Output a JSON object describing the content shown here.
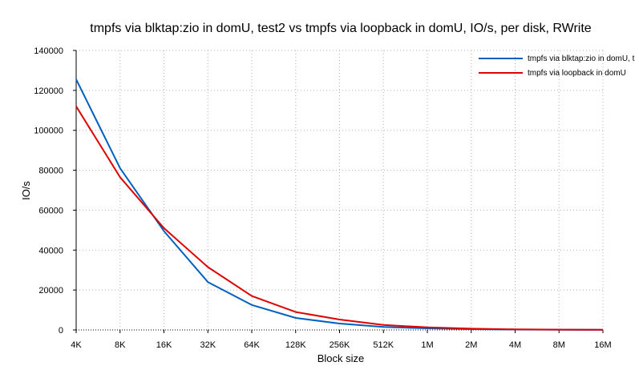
{
  "chart_data": {
    "type": "line",
    "title": "tmpfs via blktap:zio in domU, test2 vs tmpfs via loopback in domU, IO/s, per disk, RWrite",
    "xlabel": "Block size",
    "ylabel": "IO/s",
    "categories": [
      "4K",
      "8K",
      "16K",
      "32K",
      "64K",
      "128K",
      "256K",
      "512K",
      "1M",
      "2M",
      "4M",
      "8M",
      "16M"
    ],
    "ylim": [
      0,
      140000
    ],
    "yticks": [
      0,
      20000,
      40000,
      60000,
      80000,
      100000,
      120000,
      140000
    ],
    "grid": true,
    "legend_position": "top-right",
    "series": [
      {
        "name": "tmpfs via blktap:zio in domU, t",
        "color": "#0060c0",
        "values": [
          125500,
          81000,
          49500,
          24000,
          12500,
          6000,
          3200,
          1500,
          800,
          400,
          200,
          100,
          50
        ]
      },
      {
        "name": "tmpfs via loopback in domU",
        "color": "#e00000",
        "values": [
          112000,
          76500,
          51000,
          31500,
          17000,
          9000,
          5200,
          2500,
          1300,
          650,
          300,
          150,
          75
        ]
      }
    ]
  }
}
